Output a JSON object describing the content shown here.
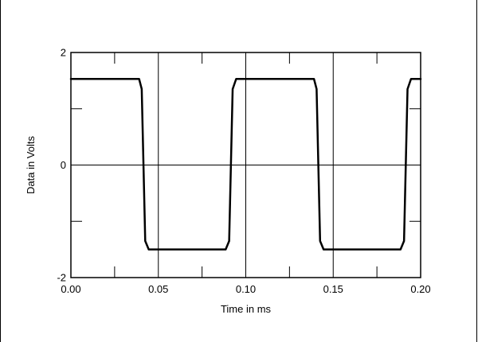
{
  "chart_data": {
    "type": "line",
    "title": "",
    "xlabel": "Time in ms",
    "ylabel": "Data in Volts",
    "xlim": [
      0.0,
      0.2
    ],
    "ylim": [
      -2,
      2
    ],
    "x_ticks": [
      "0.00",
      "0.05",
      "0.10",
      "0.15",
      "0.20"
    ],
    "y_ticks": [
      "-2",
      "0",
      "2"
    ],
    "grid": true,
    "colors": {
      "line": "#000000",
      "grid": "#000000",
      "background": "#ffffff"
    },
    "series": [
      {
        "x": [
          0.0,
          0.039,
          0.0405,
          0.0415,
          0.0425,
          0.0445,
          0.0885,
          0.0905,
          0.0915,
          0.0925,
          0.0945,
          0.139,
          0.1405,
          0.1415,
          0.1425,
          0.1445,
          0.1885,
          0.1905,
          0.1915,
          0.1925,
          0.1945,
          0.2
        ],
        "y": [
          1.53,
          1.53,
          1.35,
          0.0,
          -1.35,
          -1.5,
          -1.5,
          -1.35,
          0.0,
          1.35,
          1.53,
          1.53,
          1.35,
          0.0,
          -1.35,
          -1.5,
          -1.5,
          -1.35,
          0.0,
          1.35,
          1.53,
          1.53
        ]
      }
    ]
  }
}
